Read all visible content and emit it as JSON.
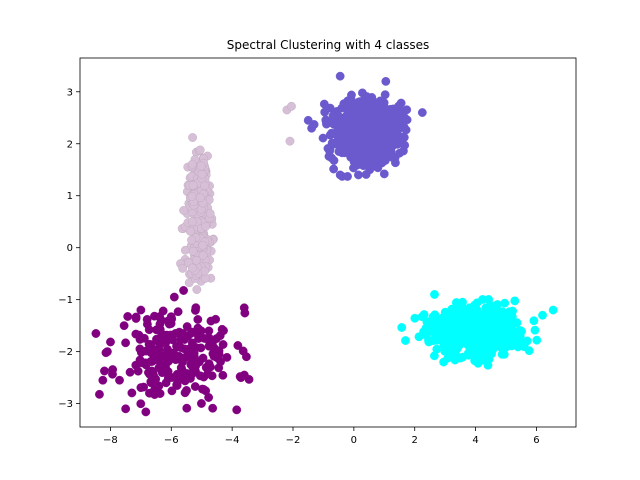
{
  "chart_data": {
    "type": "scatter",
    "title": "Spectral Clustering with 4 classes",
    "xlabel": "",
    "ylabel": "",
    "xlim": [
      -9.0,
      7.3
    ],
    "ylim": [
      -3.45,
      3.65
    ],
    "xticks": [
      -8,
      -6,
      -4,
      -2,
      0,
      2,
      4,
      6
    ],
    "yticks": [
      -3,
      -2,
      -1,
      0,
      1,
      2,
      3
    ],
    "grid": false,
    "legend": "none",
    "series": [
      {
        "color": "#800080",
        "shape": "blob",
        "cx": -5.8,
        "cy": -2.05,
        "sx": 0.95,
        "sy": 0.45,
        "n": 230,
        "seed": 11,
        "outliers": [
          [
            -8.25,
            -2.55
          ],
          [
            -8.1,
            -2.0
          ],
          [
            -7.5,
            -3.1
          ],
          [
            -3.85,
            -3.12
          ],
          [
            -3.6,
            -2.45
          ],
          [
            -5.9,
            -0.95
          ],
          [
            -7.0,
            -1.2
          ],
          [
            -7.55,
            -1.5
          ]
        ]
      },
      {
        "color": "#D8BFD8",
        "shape": "column",
        "cx": -5.1,
        "cy": 0.6,
        "sx": 0.18,
        "sy": 0.6,
        "n": 260,
        "seed": 23,
        "ymin": -1.05,
        "ymax": 2.1,
        "outliers": [
          [
            -5.3,
            2.12
          ],
          [
            -5.05,
            1.88
          ],
          [
            -2.1,
            2.05
          ],
          [
            -2.2,
            2.65
          ],
          [
            -2.05,
            2.72
          ]
        ]
      },
      {
        "color": "#6A5ACD",
        "shape": "blob",
        "cx": 0.4,
        "cy": 2.25,
        "sx": 0.55,
        "sy": 0.3,
        "n": 700,
        "seed": 37,
        "outliers": [
          [
            -0.45,
            3.3
          ],
          [
            1.05,
            3.2
          ],
          [
            -0.45,
            1.4
          ],
          [
            0.15,
            1.4
          ],
          [
            1.0,
            1.42
          ],
          [
            -1.5,
            2.45
          ],
          [
            2.25,
            2.6
          ],
          [
            1.5,
            2.05
          ]
        ]
      },
      {
        "color": "#00FFFF",
        "shape": "blob",
        "cx": 4.0,
        "cy": -1.6,
        "sx": 0.7,
        "sy": 0.22,
        "n": 750,
        "seed": 53,
        "outliers": [
          [
            2.65,
            -0.9
          ],
          [
            2.95,
            -2.2
          ],
          [
            4.0,
            -2.15
          ],
          [
            6.55,
            -1.2
          ],
          [
            6.2,
            -1.3
          ],
          [
            2.35,
            -1.6
          ],
          [
            5.6,
            -1.85
          ]
        ]
      }
    ]
  }
}
